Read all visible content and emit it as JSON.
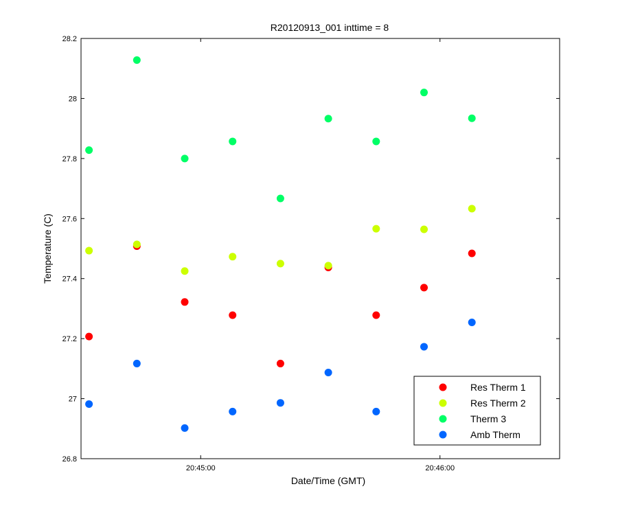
{
  "chart_data": {
    "type": "scatter",
    "title": "R20120913_001 inttime = 8",
    "xlabel": "Date/Time (GMT)",
    "ylabel": "Temperature (C)",
    "x_unit": "time (GMT)",
    "xlim": [
      "20:44:30",
      "20:46:30"
    ],
    "ylim": [
      26.8,
      28.2
    ],
    "x_ticks": [
      "20:45:00",
      "20:46:00"
    ],
    "y_ticks": [
      "26.8",
      "27",
      "27.2",
      "27.4",
      "27.6",
      "27.8",
      "28",
      "28.2"
    ],
    "grid": false,
    "legend_position": "bottom-right",
    "x": [
      "20:44:32",
      "20:44:44",
      "20:44:56",
      "20:45:08",
      "20:45:20",
      "20:45:32",
      "20:45:44",
      "20:45:56",
      "20:46:08"
    ],
    "series": [
      {
        "name": "Res Therm 1",
        "color": "#ff0000",
        "values": [
          27.207,
          27.508,
          27.322,
          27.278,
          27.117,
          27.437,
          27.278,
          27.37,
          27.484
        ]
      },
      {
        "name": "Res Therm 2",
        "color": "#ccff00",
        "values": [
          27.493,
          27.514,
          27.425,
          27.473,
          27.45,
          27.443,
          27.566,
          27.564,
          27.633
        ]
      },
      {
        "name": "Therm 3",
        "color": "#00ff66",
        "values": [
          27.828,
          28.128,
          27.8,
          27.857,
          27.667,
          27.933,
          27.857,
          28.02,
          27.934
        ]
      },
      {
        "name": "Amb Therm",
        "color": "#0066ff",
        "values": [
          26.982,
          27.117,
          26.902,
          26.957,
          26.986,
          27.087,
          26.957,
          27.173,
          27.254
        ]
      }
    ]
  }
}
